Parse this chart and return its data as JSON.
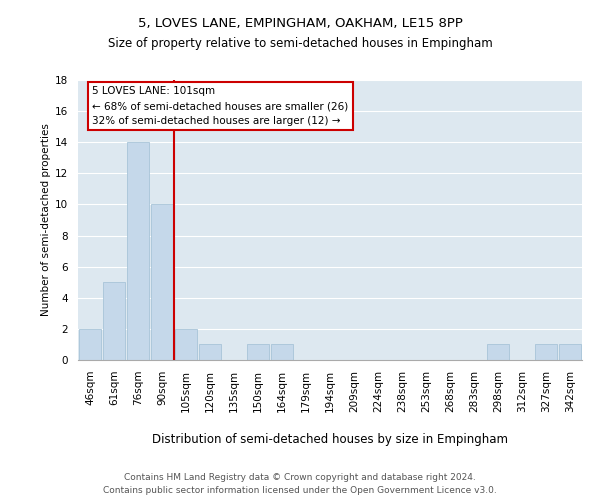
{
  "title": "5, LOVES LANE, EMPINGHAM, OAKHAM, LE15 8PP",
  "subtitle": "Size of property relative to semi-detached houses in Empingham",
  "xlabel": "Distribution of semi-detached houses by size in Empingham",
  "ylabel": "Number of semi-detached properties",
  "bin_labels": [
    "46sqm",
    "61sqm",
    "76sqm",
    "90sqm",
    "105sqm",
    "120sqm",
    "135sqm",
    "150sqm",
    "164sqm",
    "179sqm",
    "194sqm",
    "209sqm",
    "224sqm",
    "238sqm",
    "253sqm",
    "268sqm",
    "283sqm",
    "298sqm",
    "312sqm",
    "327sqm",
    "342sqm"
  ],
  "values": [
    2,
    5,
    14,
    10,
    2,
    1,
    0,
    1,
    1,
    0,
    0,
    0,
    0,
    0,
    0,
    0,
    0,
    1,
    0,
    1,
    1
  ],
  "redline_bin_index": 4,
  "annotation_text_line1": "5 LOVES LANE: 101sqm",
  "annotation_text_line2": "← 68% of semi-detached houses are smaller (26)",
  "annotation_text_line3": "32% of semi-detached houses are larger (12) →",
  "ylim": [
    0,
    18
  ],
  "yticks": [
    0,
    2,
    4,
    6,
    8,
    10,
    12,
    14,
    16,
    18
  ],
  "bar_color": "#c5d8ea",
  "bar_edgecolor": "#a8c4d8",
  "background_color": "#dde8f0",
  "grid_color": "#ffffff",
  "redline_color": "#cc0000",
  "annotation_box_facecolor": "#ffffff",
  "annotation_box_edgecolor": "#cc0000",
  "title_fontsize": 9.5,
  "subtitle_fontsize": 8.5,
  "ylabel_fontsize": 7.5,
  "xlabel_fontsize": 8.5,
  "tick_fontsize": 7.5,
  "annotation_fontsize": 7.5,
  "footer_line1": "Contains HM Land Registry data © Crown copyright and database right 2024.",
  "footer_line2": "Contains public sector information licensed under the Open Government Licence v3.0.",
  "footer_fontsize": 6.5
}
